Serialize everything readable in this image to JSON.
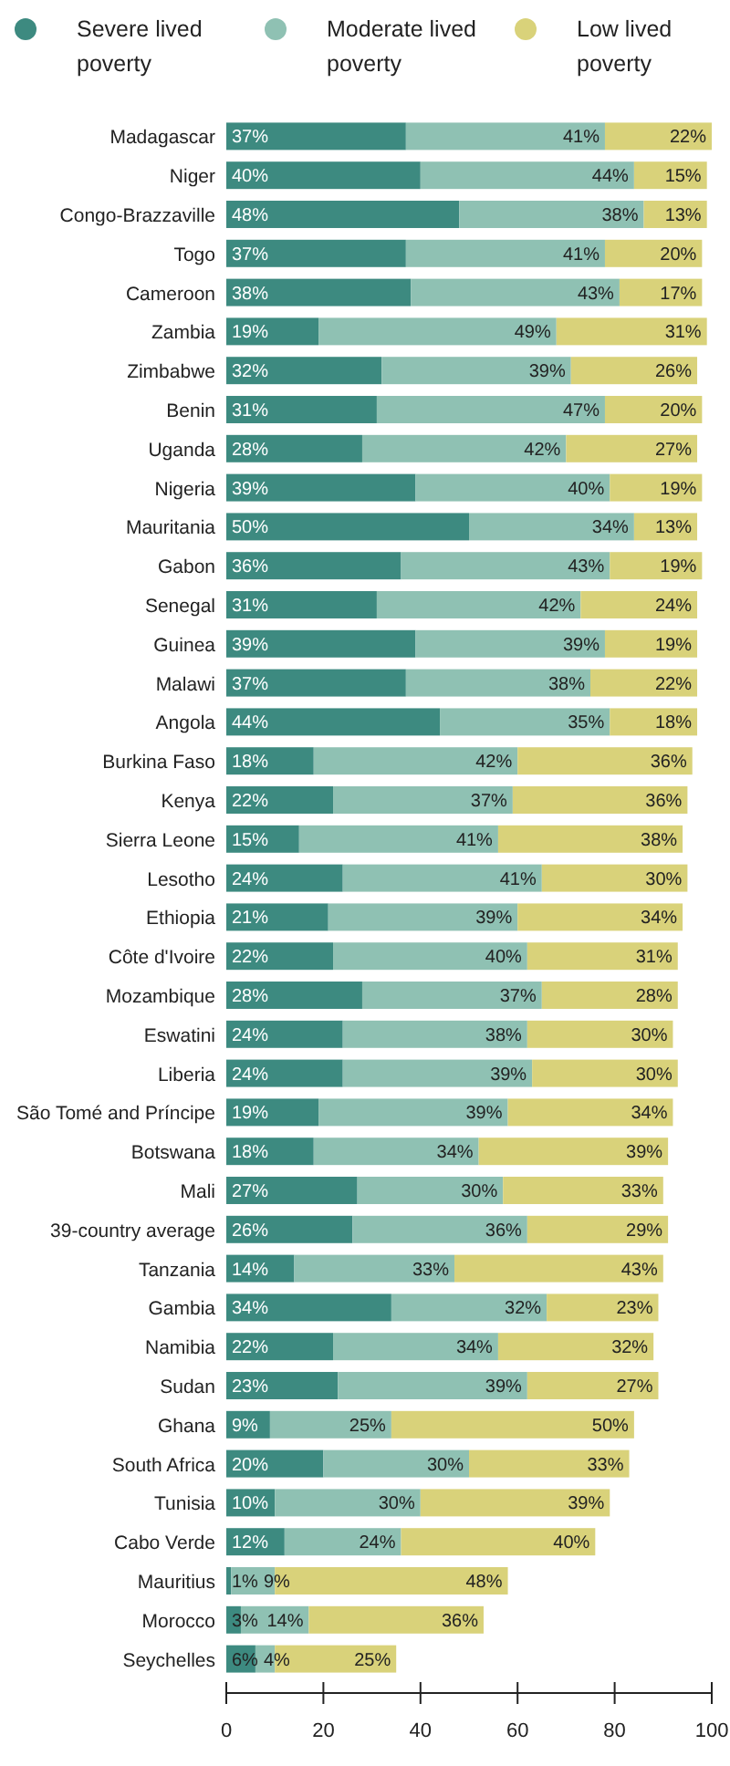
{
  "chart_data": {
    "type": "bar",
    "orientation": "horizontal",
    "stacked": true,
    "legend": "top",
    "grid": false,
    "categories": [
      "Madagascar",
      "Niger",
      "Congo-Brazzaville",
      "Togo",
      "Cameroon",
      "Zambia",
      "Zimbabwe",
      "Benin",
      "Uganda",
      "Nigeria",
      "Mauritania",
      "Gabon",
      "Senegal",
      "Guinea",
      "Malawi",
      "Angola",
      "Burkina Faso",
      "Kenya",
      "Sierra Leone",
      "Lesotho",
      "Ethiopia",
      "Côte d'Ivoire",
      "Mozambique",
      "Eswatini",
      "Liberia",
      "São Tomé and Príncipe",
      "Botswana",
      "Mali",
      "39-country average",
      "Tanzania",
      "Gambia",
      "Namibia",
      "Sudan",
      "Ghana",
      "South Africa",
      "Tunisia",
      "Cabo Verde",
      "Mauritius",
      "Morocco",
      "Seychelles"
    ],
    "xlim": [
      0,
      100
    ],
    "xticks": [
      0,
      20,
      40,
      60,
      80,
      100
    ],
    "series": [
      {
        "name": "Severe lived poverty",
        "color": "#3d8a80",
        "values": [
          37,
          40,
          48,
          37,
          38,
          19,
          32,
          31,
          28,
          39,
          50,
          36,
          31,
          39,
          37,
          44,
          18,
          22,
          15,
          24,
          21,
          22,
          28,
          24,
          24,
          19,
          18,
          27,
          26,
          14,
          34,
          22,
          23,
          9,
          20,
          10,
          12,
          1,
          3,
          6
        ],
        "value_labels": [
          "37%",
          "40%",
          "48%",
          "37%",
          "38%",
          "19%",
          "32%",
          "31%",
          "28%",
          "39%",
          "50%",
          "36%",
          "31%",
          "39%",
          "37%",
          "44%",
          "18%",
          "22%",
          "15%",
          "24%",
          "21%",
          "22%",
          "28%",
          "24%",
          "24%",
          "19%",
          "18%",
          "27%",
          "26%",
          "14%",
          "34%",
          "22%",
          "23%",
          "9%",
          "20%",
          "10%",
          "12%",
          "1%",
          "3%",
          "6%"
        ]
      },
      {
        "name": "Moderate lived poverty",
        "color": "#8fc1b3",
        "values": [
          41,
          44,
          38,
          41,
          43,
          49,
          39,
          47,
          42,
          40,
          34,
          43,
          42,
          39,
          38,
          35,
          42,
          37,
          41,
          41,
          39,
          40,
          37,
          38,
          39,
          39,
          34,
          30,
          36,
          33,
          32,
          34,
          39,
          25,
          30,
          30,
          24,
          9,
          14,
          4
        ],
        "value_labels": [
          "41%",
          "44%",
          "38%",
          "41%",
          "43%",
          "49%",
          "39%",
          "47%",
          "42%",
          "40%",
          "34%",
          "43%",
          "42%",
          "39%",
          "38%",
          "35%",
          "42%",
          "37%",
          "41%",
          "41%",
          "39%",
          "40%",
          "37%",
          "38%",
          "39%",
          "39%",
          "34%",
          "30%",
          "36%",
          "33%",
          "32%",
          "34%",
          "39%",
          "25%",
          "30%",
          "30%",
          "24%",
          "9%",
          "14%",
          "4%"
        ]
      },
      {
        "name": "Low lived poverty",
        "color": "#d9d27a",
        "values": [
          22,
          15,
          13,
          20,
          17,
          31,
          26,
          20,
          27,
          19,
          13,
          19,
          24,
          19,
          22,
          18,
          36,
          36,
          38,
          30,
          34,
          31,
          28,
          30,
          30,
          34,
          39,
          33,
          29,
          43,
          23,
          32,
          27,
          50,
          33,
          39,
          40,
          48,
          36,
          25
        ],
        "value_labels": [
          "22%",
          "15%",
          "13%",
          "20%",
          "17%",
          "31%",
          "26%",
          "20%",
          "27%",
          "19%",
          "13%",
          "19%",
          "24%",
          "19%",
          "22%",
          "18%",
          "36%",
          "36%",
          "38%",
          "30%",
          "34%",
          "31%",
          "28%",
          "30%",
          "30%",
          "34%",
          "39%",
          "33%",
          "29%",
          "43%",
          "23%",
          "32%",
          "27%",
          "50%",
          "33%",
          "39%",
          "40%",
          "48%",
          "36%",
          "25%"
        ]
      }
    ]
  }
}
